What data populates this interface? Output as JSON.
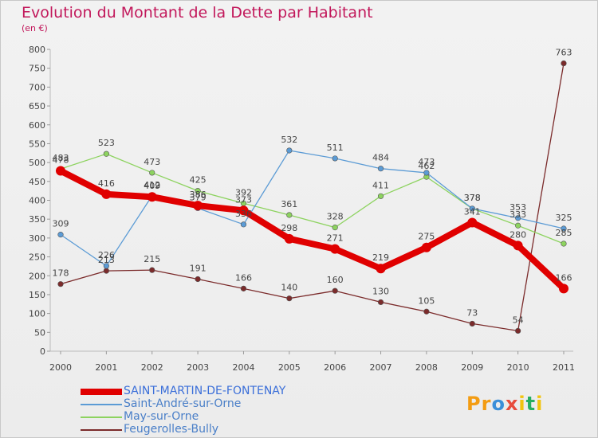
{
  "title": "Evolution du Montant de la Dette par Habitant",
  "subtitle": "(en €)",
  "logo": "Proxiti",
  "chart_data": {
    "type": "line",
    "title": "Evolution du Montant de la Dette par Habitant",
    "ylabel": "(en €)",
    "xlabel": "",
    "x": [
      "2000",
      "2001",
      "2002",
      "2003",
      "2004",
      "2005",
      "2006",
      "2007",
      "2008",
      "2009",
      "2010",
      "2011"
    ],
    "ylim": [
      0,
      800
    ],
    "yticks": [
      0,
      50,
      100,
      150,
      200,
      250,
      300,
      350,
      400,
      450,
      500,
      550,
      600,
      650,
      700,
      750,
      800
    ],
    "grid": false,
    "legend_position": "bottom-left",
    "series": [
      {
        "name": "SAINT-MARTIN-DE-FONTENAY",
        "color": "#e00000",
        "values": [
          478,
          416,
          409,
          386,
          373,
          298,
          271,
          219,
          275,
          341,
          280,
          166
        ]
      },
      {
        "name": "Saint-André-sur-Orne",
        "color": "#5b9bd5",
        "values": [
          309,
          226,
          412,
          379,
          336,
          532,
          511,
          484,
          473,
          378,
          353,
          325
        ]
      },
      {
        "name": "May-sur-Orne",
        "color": "#8dd35f",
        "values": [
          483,
          523,
          473,
          425,
          392,
          361,
          328,
          411,
          462,
          378,
          333,
          285
        ]
      },
      {
        "name": "Feugerolles-Bully",
        "color": "#7b2b2b",
        "values": [
          178,
          213,
          215,
          191,
          166,
          140,
          160,
          130,
          105,
          73,
          54,
          763
        ]
      }
    ]
  }
}
